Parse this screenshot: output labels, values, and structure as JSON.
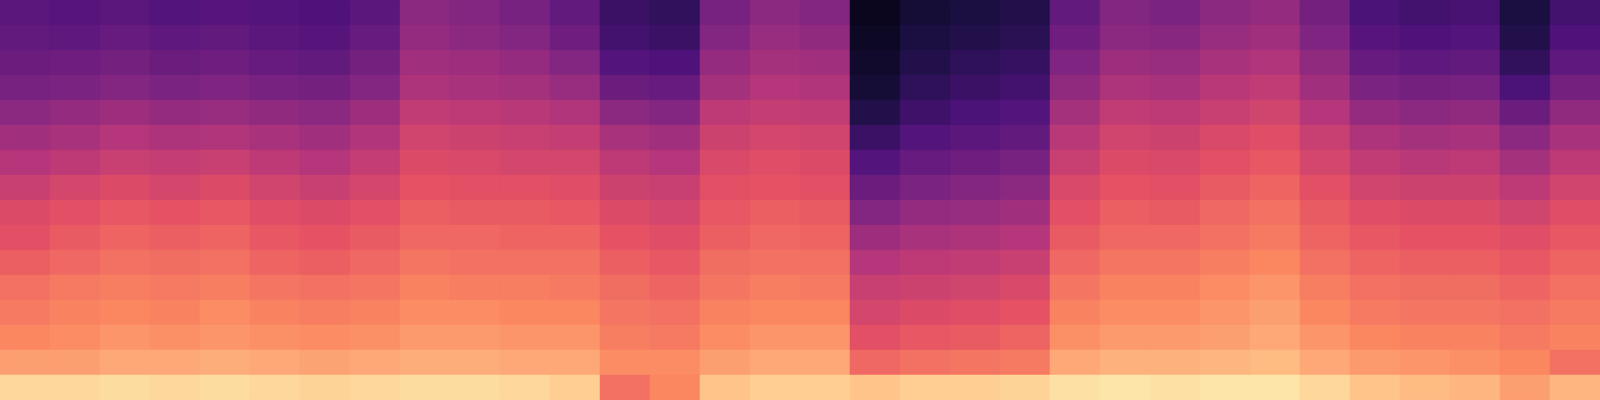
{
  "chart_data": {
    "type": "heatmap",
    "tick_labels": false,
    "xlim": [
      0,
      32
    ],
    "ylim": [
      0,
      16
    ],
    "color_range": [
      0,
      100
    ],
    "values": [
      [
        28,
        30,
        32,
        35,
        40,
        45,
        50,
        55,
        60,
        62,
        66,
        70,
        72,
        75,
        80,
        92
      ],
      [
        27,
        29,
        33,
        36,
        42,
        47,
        52,
        58,
        62,
        65,
        68,
        72,
        74,
        76,
        80,
        92
      ],
      [
        28,
        31,
        34,
        38,
        44,
        50,
        55,
        60,
        64,
        67,
        70,
        73,
        75,
        78,
        82,
        93
      ],
      [
        26,
        29,
        32,
        36,
        42,
        48,
        54,
        58,
        63,
        66,
        69,
        72,
        74,
        77,
        82,
        92
      ],
      [
        27,
        30,
        33,
        37,
        43,
        49,
        55,
        60,
        64,
        67,
        70,
        73,
        76,
        78,
        83,
        93
      ],
      [
        26,
        28,
        31,
        35,
        41,
        47,
        52,
        57,
        61,
        64,
        67,
        71,
        74,
        77,
        82,
        92
      ],
      [
        25,
        27,
        30,
        34,
        40,
        45,
        50,
        55,
        60,
        63,
        66,
        70,
        73,
        76,
        81,
        91
      ],
      [
        28,
        31,
        34,
        38,
        44,
        49,
        54,
        58,
        62,
        65,
        68,
        71,
        74,
        77,
        82,
        92
      ],
      [
        40,
        42,
        45,
        48,
        53,
        57,
        60,
        63,
        66,
        68,
        71,
        74,
        76,
        79,
        83,
        93
      ],
      [
        38,
        40,
        44,
        47,
        52,
        56,
        59,
        62,
        65,
        68,
        70,
        73,
        76,
        79,
        83,
        93
      ],
      [
        35,
        38,
        42,
        46,
        51,
        55,
        58,
        62,
        65,
        67,
        70,
        73,
        75,
        78,
        82,
        92
      ],
      [
        30,
        33,
        38,
        43,
        49,
        54,
        58,
        61,
        64,
        67,
        70,
        72,
        75,
        78,
        82,
        90
      ],
      [
        20,
        22,
        26,
        32,
        40,
        47,
        52,
        56,
        60,
        63,
        66,
        69,
        71,
        73,
        76,
        70
      ],
      [
        18,
        20,
        25,
        31,
        38,
        45,
        50,
        55,
        58,
        61,
        64,
        67,
        70,
        72,
        76,
        75
      ],
      [
        35,
        38,
        42,
        46,
        52,
        56,
        59,
        62,
        64,
        66,
        69,
        71,
        74,
        76,
        80,
        88
      ],
      [
        40,
        43,
        46,
        50,
        54,
        58,
        61,
        63,
        66,
        68,
        70,
        73,
        75,
        78,
        82,
        90
      ],
      [
        38,
        41,
        45,
        49,
        53,
        57,
        60,
        62,
        65,
        67,
        70,
        72,
        75,
        78,
        82,
        90
      ],
      [
        5,
        6,
        8,
        10,
        14,
        20,
        26,
        32,
        38,
        44,
        50,
        55,
        58,
        62,
        68,
        88
      ],
      [
        10,
        12,
        14,
        17,
        21,
        26,
        31,
        36,
        42,
        47,
        52,
        56,
        60,
        64,
        70,
        90
      ],
      [
        12,
        14,
        17,
        20,
        24,
        28,
        33,
        38,
        43,
        48,
        53,
        57,
        61,
        65,
        71,
        90
      ],
      [
        14,
        16,
        19,
        22,
        26,
        30,
        35,
        40,
        45,
        50,
        55,
        59,
        63,
        67,
        72,
        91
      ],
      [
        30,
        33,
        37,
        41,
        46,
        51,
        55,
        59,
        62,
        65,
        68,
        71,
        74,
        77,
        82,
        94
      ],
      [
        38,
        40,
        44,
        48,
        53,
        57,
        60,
        63,
        66,
        68,
        71,
        74,
        76,
        79,
        84,
        95
      ],
      [
        36,
        39,
        43,
        47,
        52,
        56,
        59,
        62,
        65,
        68,
        71,
        74,
        76,
        79,
        84,
        94
      ],
      [
        40,
        43,
        47,
        51,
        55,
        59,
        62,
        65,
        68,
        70,
        73,
        76,
        78,
        80,
        85,
        95
      ],
      [
        42,
        45,
        49,
        53,
        57,
        61,
        64,
        67,
        70,
        72,
        75,
        78,
        80,
        82,
        86,
        95
      ],
      [
        34,
        37,
        41,
        45,
        50,
        55,
        58,
        62,
        65,
        67,
        70,
        73,
        75,
        78,
        82,
        92
      ],
      [
        24,
        27,
        31,
        36,
        42,
        48,
        53,
        57,
        61,
        64,
        67,
        70,
        72,
        75,
        79,
        88
      ],
      [
        22,
        25,
        29,
        34,
        40,
        46,
        51,
        56,
        60,
        63,
        66,
        69,
        71,
        74,
        78,
        86
      ],
      [
        23,
        26,
        30,
        35,
        41,
        47,
        52,
        56,
        60,
        63,
        66,
        69,
        71,
        74,
        77,
        85
      ],
      [
        12,
        14,
        18,
        24,
        32,
        40,
        46,
        52,
        57,
        61,
        64,
        67,
        70,
        72,
        75,
        80
      ],
      [
        22,
        25,
        29,
        34,
        41,
        47,
        52,
        57,
        61,
        64,
        67,
        70,
        72,
        74,
        70,
        85
      ]
    ]
  }
}
